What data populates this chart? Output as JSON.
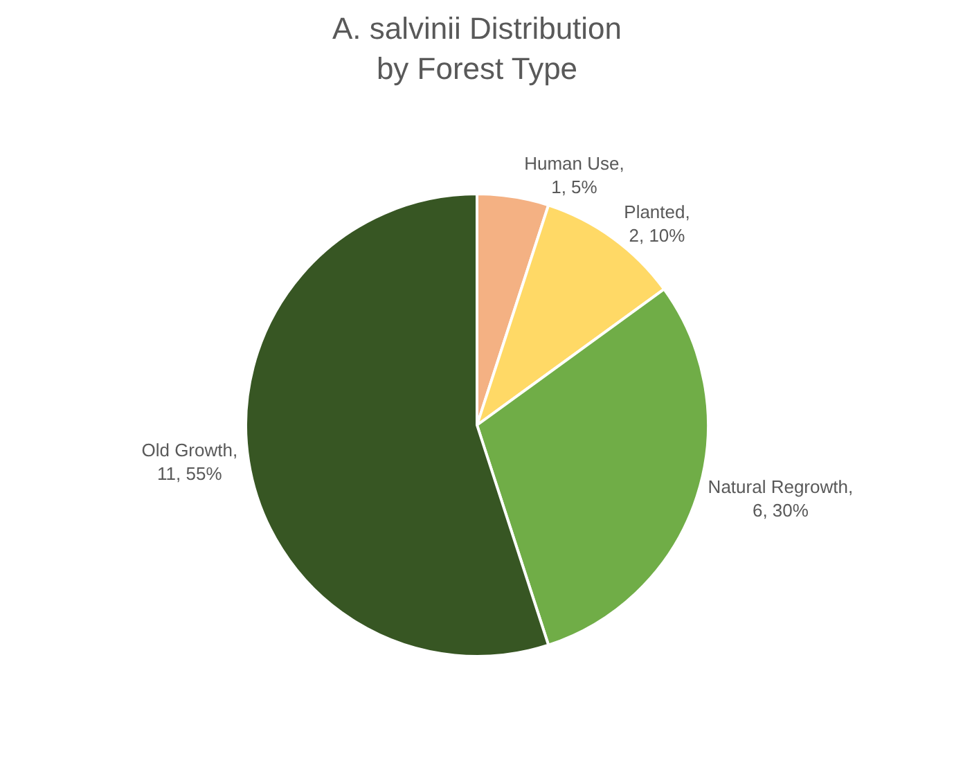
{
  "chart_data": {
    "type": "pie",
    "title": "A. salvinii Distribution\nby Forest Type",
    "categories": [
      "Human Use",
      "Planted",
      "Natural Regrowth",
      "Old Growth"
    ],
    "values": [
      1,
      2,
      6,
      11
    ],
    "value_labels": [
      ",\n1, 5%",
      ",\n2, 10%",
      ",\n6, 30%",
      ",\n11, 55%"
    ],
    "colors": [
      "#f4b183",
      "#ffd966",
      "#70ad47",
      "#375623"
    ],
    "legend": false
  }
}
